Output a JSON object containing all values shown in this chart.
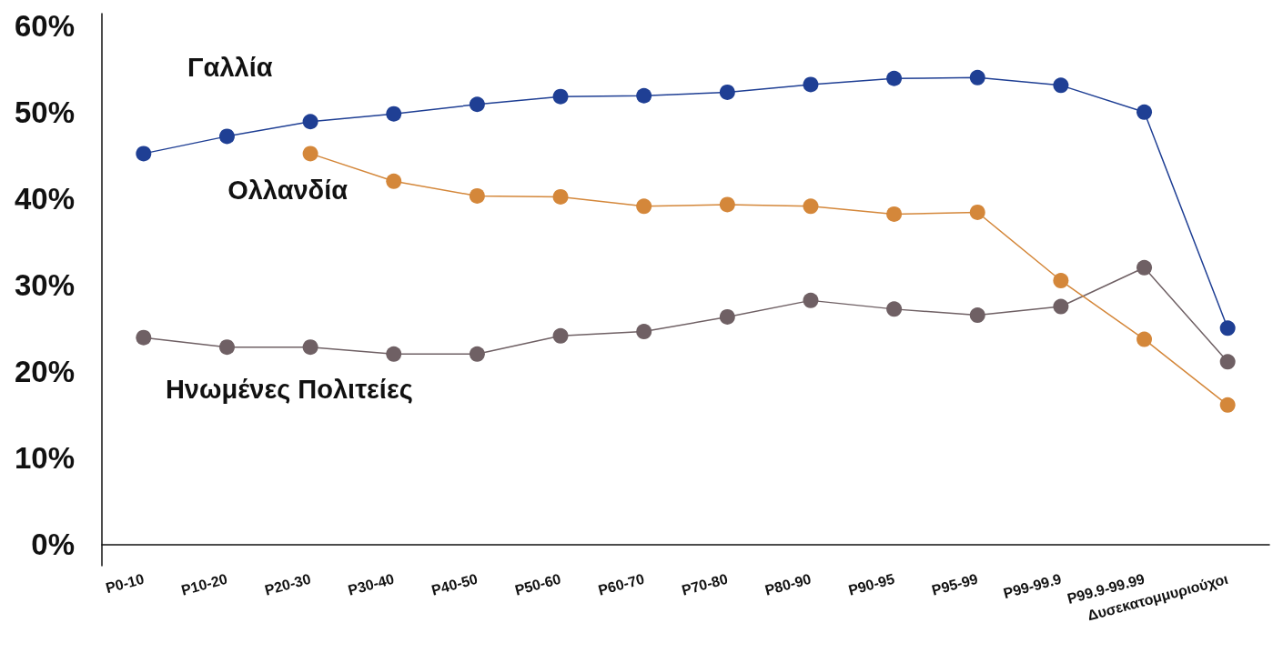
{
  "chart_data": {
    "type": "line",
    "categories": [
      "P0-10",
      "P10-20",
      "P20-30",
      "P30-40",
      "P40-50",
      "P50-60",
      "P60-70",
      "P70-80",
      "P80-90",
      "P90-95",
      "P95-99",
      "P99-99.9",
      "P99.9-99.99",
      "Δυσεκατομμυριούχοι"
    ],
    "series": [
      {
        "name": "Γαλλία",
        "color": "#1f3f94",
        "values": [
          45.2,
          47.2,
          48.9,
          49.8,
          50.9,
          51.8,
          51.9,
          52.3,
          53.2,
          53.9,
          54.0,
          53.1,
          50.0,
          25.0
        ]
      },
      {
        "name": "Ολλανδία",
        "color": "#d4873a",
        "values": [
          null,
          null,
          45.2,
          42.0,
          40.3,
          40.2,
          39.1,
          39.3,
          39.1,
          38.2,
          38.4,
          30.5,
          23.7,
          16.1
        ]
      },
      {
        "name": "Ηνωμένες Πολιτείες",
        "color": "#6f6064",
        "values": [
          23.9,
          22.8,
          22.8,
          22.0,
          22.0,
          24.1,
          24.6,
          26.3,
          28.2,
          27.2,
          26.5,
          27.5,
          32.0,
          21.1
        ]
      }
    ],
    "ylim": [
      -2.5,
      61.4
    ],
    "yticks": [
      {
        "value": 0,
        "label": "0%"
      },
      {
        "value": 10,
        "label": "10%"
      },
      {
        "value": 20,
        "label": "20%"
      },
      {
        "value": 30,
        "label": "30%"
      },
      {
        "value": 40,
        "label": "40%"
      },
      {
        "value": 50,
        "label": "50%"
      },
      {
        "value": 60,
        "label": "60%"
      }
    ],
    "grid": false,
    "legend": false,
    "marker": "circle",
    "line_style": "solid"
  }
}
